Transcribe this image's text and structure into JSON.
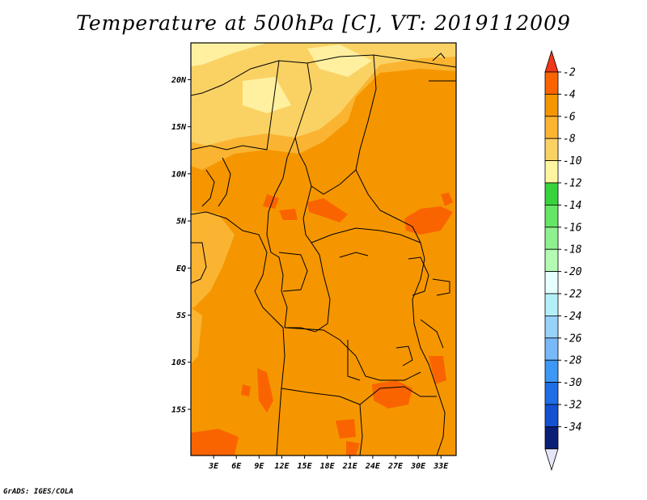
{
  "title": "Temperature at 500hPa [C], VT: 2019112009",
  "credit": "GrADS: IGES/COLA",
  "map": {
    "lat_ticks": [
      {
        "lat": 20,
        "label": "20N"
      },
      {
        "lat": 15,
        "label": "15N"
      },
      {
        "lat": 10,
        "label": "10N"
      },
      {
        "lat": 5,
        "label": "5N"
      },
      {
        "lat": 0,
        "label": "EQ"
      },
      {
        "lat": -5,
        "label": "5S"
      },
      {
        "lat": -10,
        "label": "10S"
      },
      {
        "lat": -15,
        "label": "15S"
      }
    ],
    "lon_ticks": [
      {
        "lon": 3,
        "label": "3E"
      },
      {
        "lon": 6,
        "label": "6E"
      },
      {
        "lon": 9,
        "label": "9E"
      },
      {
        "lon": 12,
        "label": "12E"
      },
      {
        "lon": 15,
        "label": "15E"
      },
      {
        "lon": 18,
        "label": "18E"
      },
      {
        "lon": 21,
        "label": "21E"
      },
      {
        "lon": 24,
        "label": "24E"
      },
      {
        "lon": 27,
        "label": "27E"
      },
      {
        "lon": 30,
        "label": "30E"
      },
      {
        "lon": 33,
        "label": "33E"
      }
    ]
  },
  "colorbar": {
    "labels": [
      "-2",
      "-4",
      "-6",
      "-8",
      "-10",
      "-12",
      "-14",
      "-16",
      "-18",
      "-20",
      "-22",
      "-24",
      "-26",
      "-28",
      "-30",
      "-32",
      "-34"
    ],
    "colors": [
      "#f0381a",
      "#fa6400",
      "#f59600",
      "#fab432",
      "#fad264",
      "#fff5a0",
      "#37d23c",
      "#64e664",
      "#8ef08e",
      "#b4fab4",
      "#e6ffff",
      "#b4f0fa",
      "#96d2fa",
      "#78b9fa",
      "#3c97f5",
      "#1e6ee6",
      "#1450d2",
      "#0a1e78"
    ],
    "top_color": "#f0381a",
    "bottom_color": "#e6e6fa"
  }
}
